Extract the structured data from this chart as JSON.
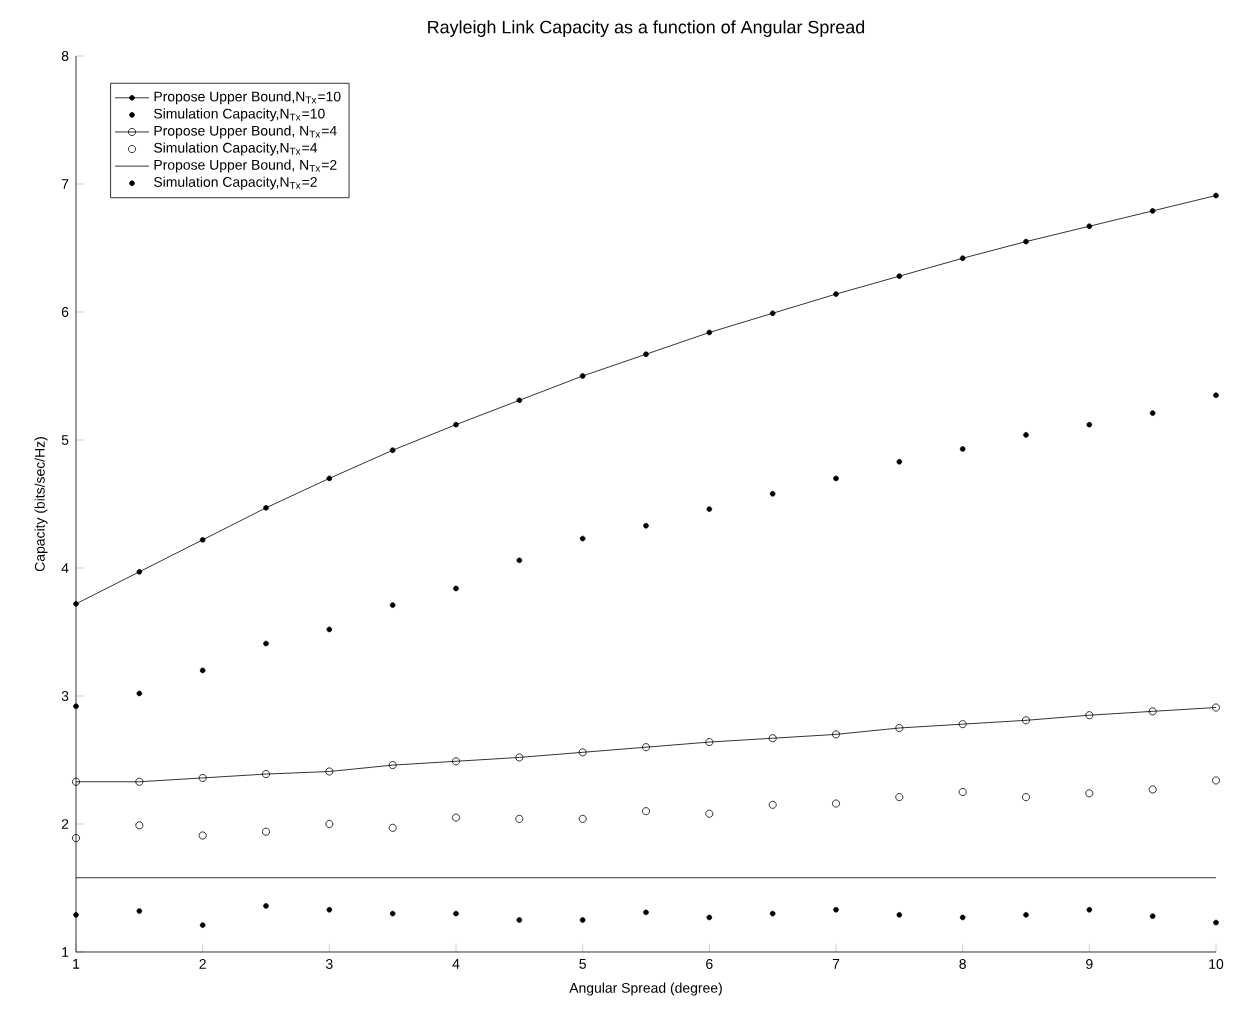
{
  "chart_data": {
    "type": "line",
    "title": "Rayleigh Link Capacity as a function of Angular Spread",
    "xlabel": "Angular Spread (degree)",
    "ylabel": "Capacity (bits/sec/Hz)",
    "x": [
      1,
      1.5,
      2,
      2.5,
      3,
      3.5,
      4,
      4.5,
      5,
      5.5,
      6,
      6.5,
      7,
      7.5,
      8,
      8.5,
      9,
      9.5,
      10
    ],
    "xlim": [
      1,
      10
    ],
    "ylim": [
      1,
      8
    ],
    "xticks": [
      1,
      2,
      3,
      4,
      5,
      6,
      7,
      8,
      9,
      10
    ],
    "yticks": [
      1,
      2,
      3,
      4,
      5,
      6,
      7,
      8
    ],
    "grid": false,
    "legend": "top left",
    "series": [
      {
        "name": "Propose Upper Bound,N$_{Tx}$=10",
        "marker": "star",
        "color": "#000000",
        "values": [
          3.72,
          3.97,
          4.22,
          4.47,
          4.7,
          4.92,
          5.12,
          5.31,
          5.5,
          5.67,
          5.84,
          5.99,
          6.14,
          6.28,
          6.42,
          6.55,
          6.67,
          6.79,
          6.91
        ]
      },
      {
        "name": "Simulation Capacity,N$_{Tx}$=10",
        "type": "scatter",
        "marker": "star",
        "color": "#000000",
        "values": [
          2.92,
          3.02,
          3.2,
          3.41,
          3.52,
          3.71,
          3.84,
          4.06,
          4.23,
          4.33,
          4.46,
          4.58,
          4.7,
          4.83,
          4.93,
          5.04,
          5.12,
          5.21,
          5.35
        ]
      },
      {
        "name": "Propose Upper Bound, N$_{Tx}$=4",
        "marker": "circle",
        "color": "#000000",
        "values": [
          2.33,
          2.33,
          2.36,
          2.39,
          2.41,
          2.46,
          2.49,
          2.52,
          2.56,
          2.6,
          2.64,
          2.67,
          2.7,
          2.75,
          2.78,
          2.81,
          2.85,
          2.88,
          2.91
        ]
      },
      {
        "name": "Simulation Capacity,N$_{Tx}$=4",
        "type": "scatter",
        "marker": "circle",
        "color": "#000000",
        "values": [
          1.89,
          1.99,
          1.91,
          1.94,
          2.0,
          1.97,
          2.05,
          2.04,
          2.04,
          2.1,
          2.08,
          2.15,
          2.16,
          2.21,
          2.25,
          2.21,
          2.24,
          2.27,
          2.34
        ]
      },
      {
        "name": "Propose Upper Bound, N$_{Tx}$=2",
        "marker": "none",
        "color": "#000000",
        "x": [
          1,
          10
        ],
        "values": [
          1.58,
          1.58
        ]
      },
      {
        "name": "Simulation Capacity,N$_{Tx}$=2",
        "type": "scatter",
        "marker": "star",
        "color": "#000000",
        "values": [
          1.29,
          1.32,
          1.21,
          1.36,
          1.33,
          1.3,
          1.3,
          1.25,
          1.25,
          1.31,
          1.27,
          1.3,
          1.33,
          1.29,
          1.27,
          1.29,
          1.33,
          1.28,
          1.23
        ]
      }
    ]
  }
}
